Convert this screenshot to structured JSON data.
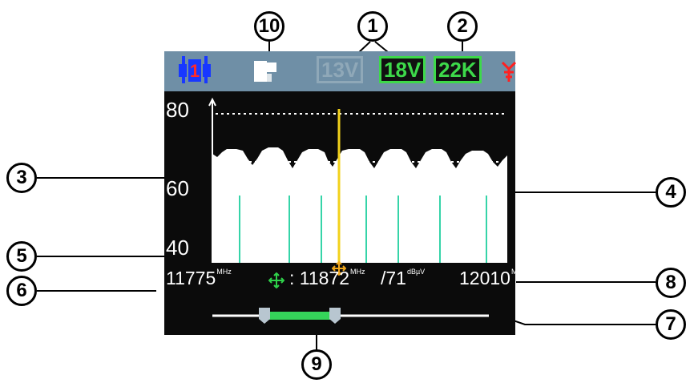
{
  "callouts": {
    "c1": "1",
    "c2": "2",
    "c3": "3",
    "c4": "4",
    "c5": "5",
    "c6": "6",
    "c7": "7",
    "c8": "8",
    "c9": "9",
    "c10": "10"
  },
  "statusbar": {
    "satellite_badge": "1",
    "voltage_13": "13V",
    "voltage_18": "18V",
    "tone_22k": "22K",
    "active_color": "#3dd94a",
    "inactive_color": "#8fa8b8"
  },
  "spectrum": {
    "y_ticks": [
      "80",
      "60",
      "40"
    ],
    "ylim": [
      40,
      80
    ]
  },
  "infobar": {
    "start_freq": "11775",
    "start_unit": "MHz",
    "marker_prefix": ": 11872",
    "marker_unit": "MHz",
    "level": "/71",
    "level_unit": "dBµV",
    "stop_freq": "12010",
    "stop_unit": "MHz"
  },
  "icons": {
    "satellite": "satellite-icon",
    "lnb": "lnb-icon",
    "antenna": "antenna-icon",
    "battery": "battery-icon",
    "move": "move-arrows-icon"
  }
}
